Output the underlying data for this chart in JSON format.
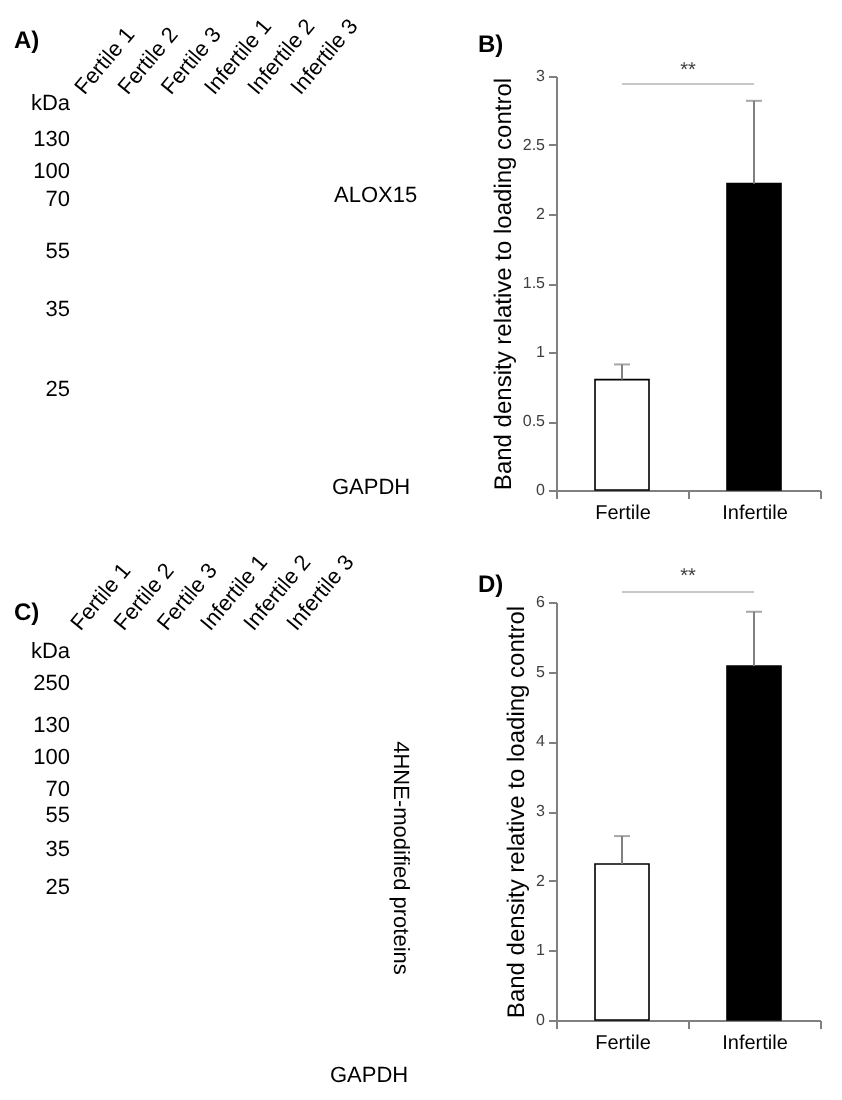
{
  "chart_data": [
    {
      "type": "other",
      "title": "A)",
      "categories": [
        "Fertile 1",
        "Fertile 2",
        "Fertile 3",
        "Infertile 1",
        "Infertile 2",
        "Infertile 3"
      ],
      "annotations": [
        "kDa",
        "130",
        "100",
        "70",
        "55",
        "35",
        "25",
        "ALOX15",
        "GAPDH"
      ]
    },
    {
      "type": "bar",
      "title": "B)",
      "ylabel": "Band density relative to loading control",
      "categories": [
        "Fertile",
        "Infertile"
      ],
      "values": [
        0.8,
        2.22
      ],
      "colors": [
        "#ffffff",
        "#000000"
      ],
      "errors": [
        [
          0.8,
          0.91
        ],
        [
          2.22,
          2.82
        ]
      ],
      "ylim": [
        0,
        3
      ],
      "yticks": [
        0,
        0.5,
        1,
        1.5,
        2,
        2.5,
        3
      ],
      "annotations": [
        "**"
      ]
    },
    {
      "type": "other",
      "title": "C)",
      "categories": [
        "Fertile 1",
        "Fertile 2",
        "Fertile 3",
        "Infertile 1",
        "Infertile 2",
        "Infertile 3"
      ],
      "annotations": [
        "kDa",
        "250",
        "130",
        "100",
        "70",
        "55",
        "35",
        "25",
        "4HNE-modified proteins",
        "GAPDH"
      ]
    },
    {
      "type": "bar",
      "title": "D)",
      "ylabel": "Band density relative to loading control",
      "categories": [
        "Fertile",
        "Infertile"
      ],
      "values": [
        2.24,
        5.08
      ],
      "colors": [
        "#ffffff",
        "#000000"
      ],
      "errors": [
        [
          2.24,
          2.64
        ],
        [
          5.08,
          5.86
        ]
      ],
      "ylim": [
        0,
        6
      ],
      "yticks": [
        0,
        1,
        2,
        3,
        4,
        5,
        6
      ],
      "annotations": [
        "**"
      ]
    }
  ]
}
